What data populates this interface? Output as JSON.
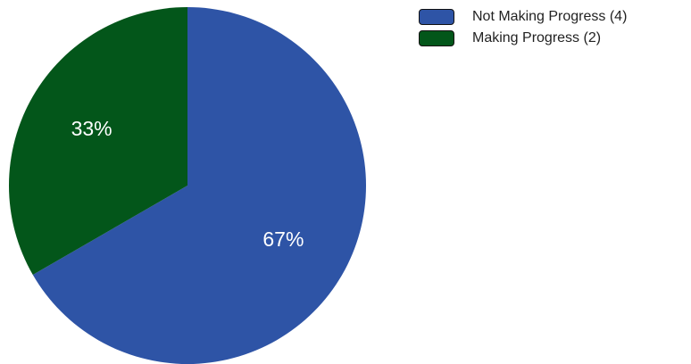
{
  "chart_data": {
    "type": "pie",
    "slices": [
      {
        "label": "Not Making Progress (4)",
        "value": 4,
        "percent_label": "67%",
        "color": "#2e54a6"
      },
      {
        "label": "Making Progress (2)",
        "value": 2,
        "percent_label": "33%",
        "color": "#03561a"
      }
    ],
    "legend_position": "top-right"
  }
}
